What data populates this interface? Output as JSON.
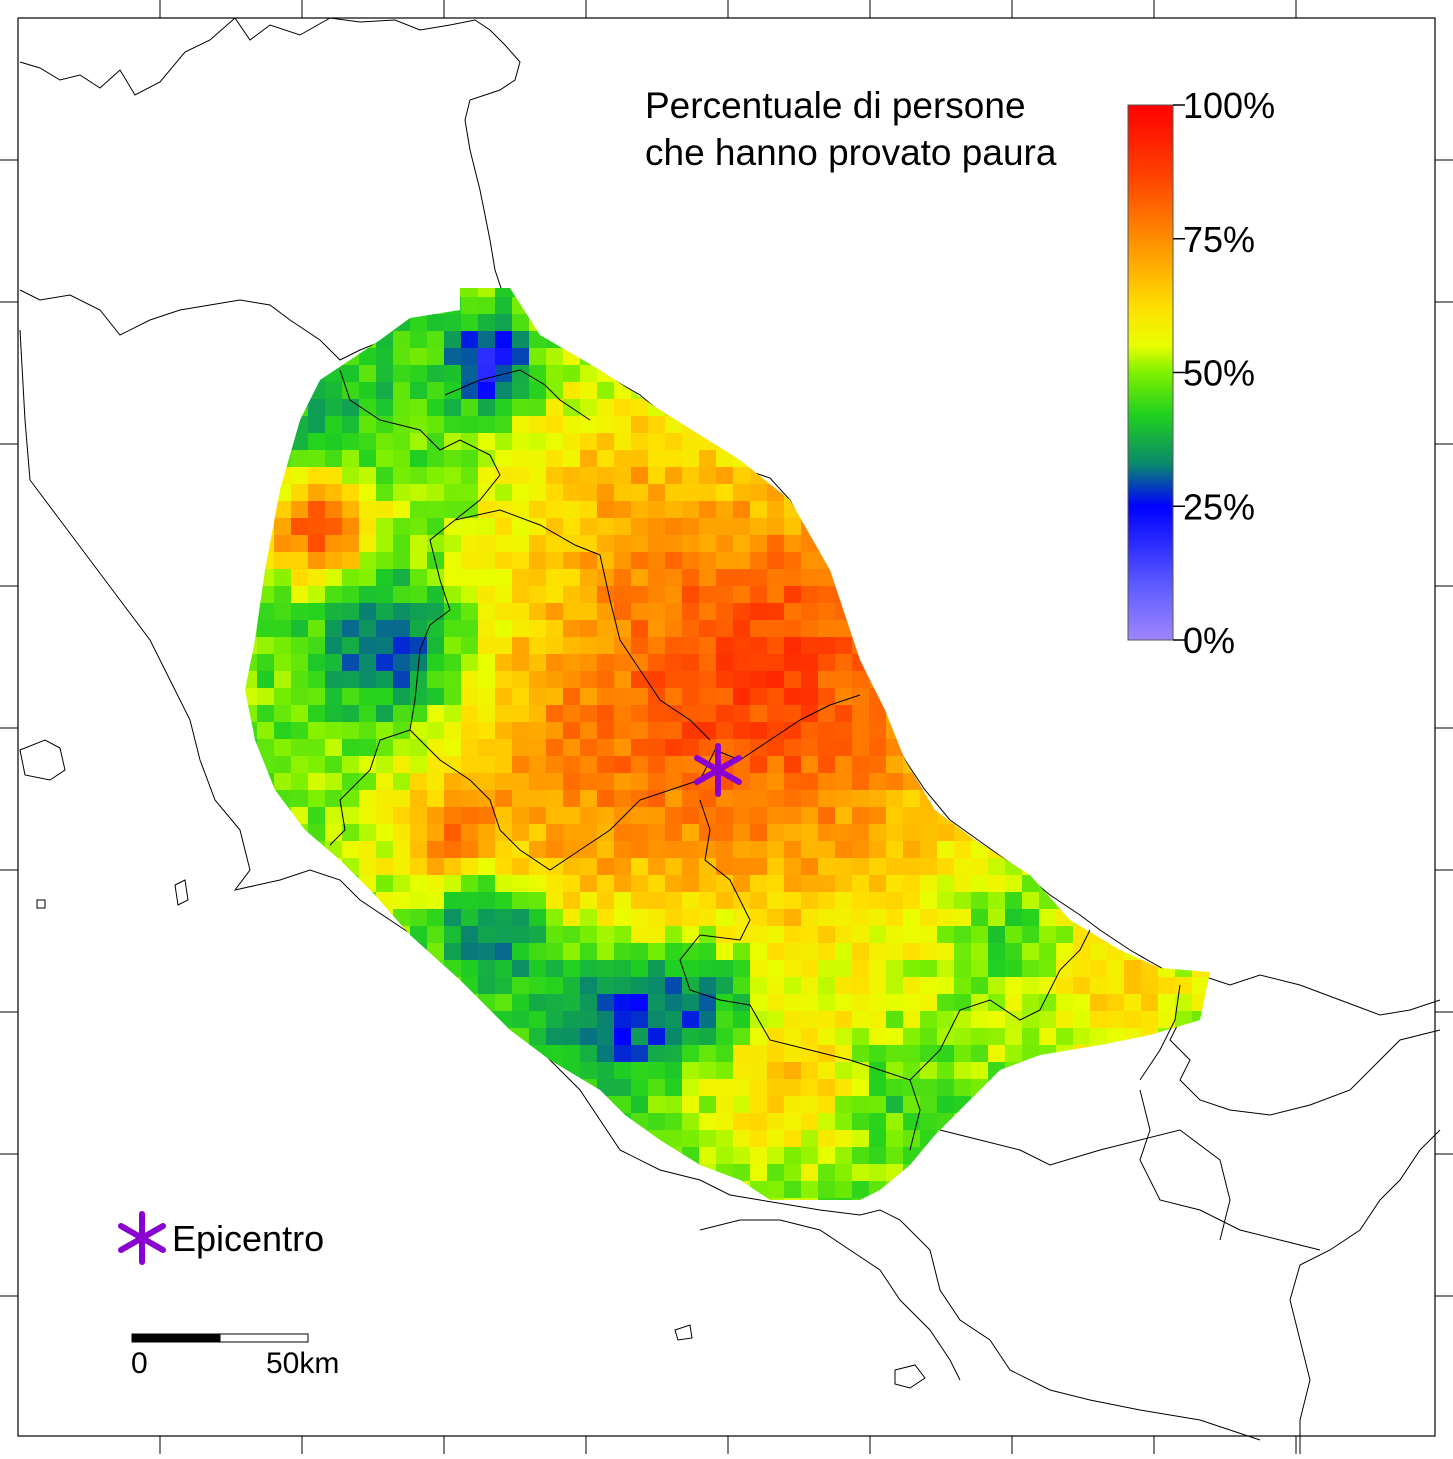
{
  "title": {
    "line1": "Percentuale di persone",
    "line2": "che hanno provato paura"
  },
  "colorbar": {
    "ticks": [
      "100%",
      "75%",
      "50%",
      "25%",
      "0%"
    ],
    "stops": [
      {
        "value": 100,
        "color": "#ff0000"
      },
      {
        "value": 87,
        "color": "#ff4000"
      },
      {
        "value": 75,
        "color": "#ff8c00"
      },
      {
        "value": 62,
        "color": "#ffe000"
      },
      {
        "value": 55,
        "color": "#e8ff00"
      },
      {
        "value": 50,
        "color": "#7ff000"
      },
      {
        "value": 42,
        "color": "#20d020"
      },
      {
        "value": 33,
        "color": "#0a8a6a"
      },
      {
        "value": 25,
        "color": "#0000ff"
      },
      {
        "value": 10,
        "color": "#5f5cff"
      },
      {
        "value": 0,
        "color": "#9f86ff"
      }
    ]
  },
  "legend": {
    "epicenter_label": "Epicentro",
    "epicenter_color": "#8a00d0",
    "epicenter_icon": "asterisk-icon"
  },
  "scalebar": {
    "label_start": "0",
    "label_end": "50km"
  }
}
